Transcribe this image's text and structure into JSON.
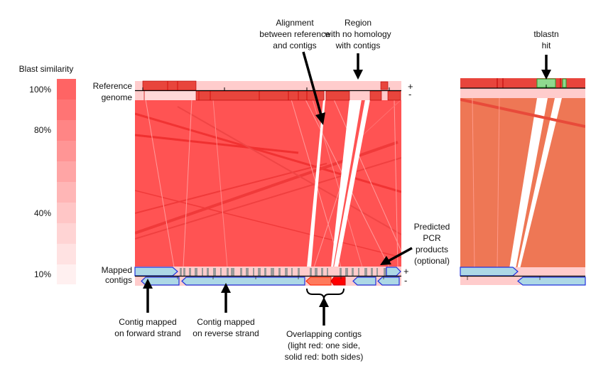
{
  "legend": {
    "title": "Blast similarity",
    "ticks": [
      "100%",
      "80%",
      "40%",
      "10%"
    ]
  },
  "tracks": {
    "reference_line1": "Reference",
    "reference_line2": "genome",
    "contigs_line1": "Mapped",
    "contigs_line2": "contigs",
    "plus": "+",
    "minus": "-"
  },
  "annotations": {
    "alignment": [
      "Alignment",
      "between reference",
      "and contigs"
    ],
    "no_homology": [
      "Region",
      "with no homology",
      "with contigs"
    ],
    "pcr": [
      "Predicted",
      "PCR",
      "products",
      "(optional)"
    ],
    "forward": [
      "Contig mapped",
      "on forward strand"
    ],
    "reverse": [
      "Contig mapped",
      "on reverse strand"
    ],
    "overlap": [
      "Overlapping contigs",
      "(light red: one side,",
      "solid red: both sides)"
    ],
    "tblastn": [
      "tblastn",
      "hit"
    ]
  },
  "colors": {
    "alignment": "#ff5050",
    "reference_block": "#e8453c",
    "reference_light": "#ffcccc",
    "contig_fill": "#add8e6",
    "contig_stroke": "#2222dd",
    "overlap_light": "#ff7a5c",
    "overlap_solid": "#ff0000",
    "tblastn_hit": "#8fd98f",
    "right_alignment": "#ee7755"
  }
}
